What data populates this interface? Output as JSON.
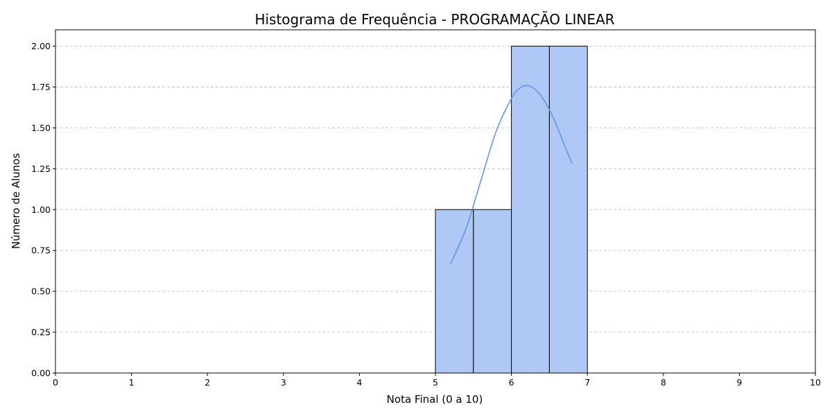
{
  "chart_data": {
    "type": "bar",
    "title": "Histograma de Frequência - PROGRAMAÇÃO LINEAR",
    "xlabel": "Nota Final (0 a 10)",
    "ylabel": "Número de Alunos",
    "xlim": [
      0,
      10
    ],
    "ylim": [
      0,
      2.1
    ],
    "xticks": [
      "0",
      "1",
      "2",
      "3",
      "4",
      "5",
      "6",
      "7",
      "8",
      "9",
      "10"
    ],
    "yticks": [
      "0.00",
      "0.25",
      "0.50",
      "0.75",
      "1.00",
      "1.25",
      "1.50",
      "1.75",
      "2.00"
    ],
    "bins": [
      {
        "start": 5.0,
        "end": 5.5,
        "count": 1
      },
      {
        "start": 5.5,
        "end": 6.0,
        "count": 1
      },
      {
        "start": 6.0,
        "end": 6.5,
        "count": 2
      },
      {
        "start": 6.5,
        "end": 7.0,
        "count": 2
      }
    ],
    "kde": {
      "x": [
        5.2,
        5.4,
        5.6,
        5.8,
        6.0,
        6.1,
        6.2,
        6.3,
        6.4,
        6.5,
        6.6,
        6.7,
        6.8
      ],
      "y": [
        0.67,
        0.88,
        1.18,
        1.48,
        1.68,
        1.74,
        1.76,
        1.74,
        1.69,
        1.61,
        1.51,
        1.39,
        1.28
      ]
    },
    "grid": "y-dashed",
    "colors": {
      "bar_fill": "#b0c8f5",
      "bar_edge": "#000000",
      "kde_line": "#6495ed",
      "grid": "#c8c8c8"
    }
  }
}
